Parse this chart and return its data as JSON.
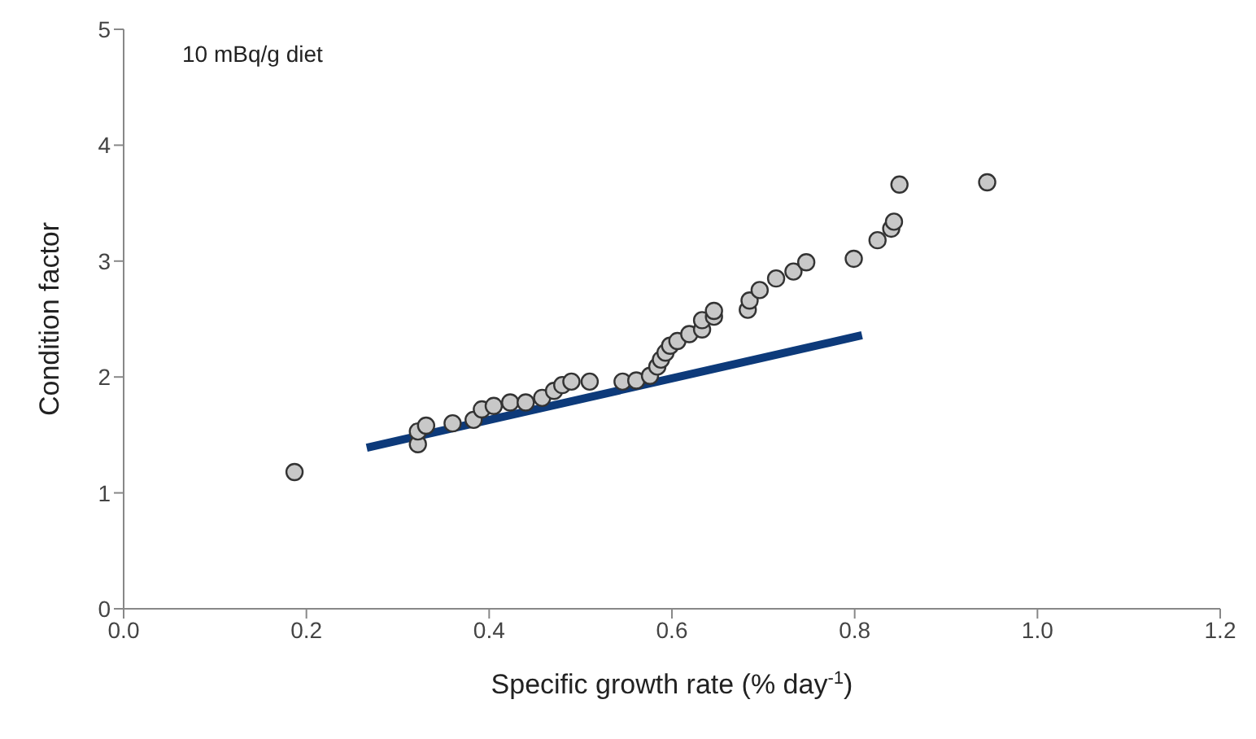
{
  "chart_data": {
    "type": "scatter",
    "xlabel": "Specific growth rate (% day$^{-1}$)",
    "ylabel": "Condition factor",
    "annotations": [
      "10 mBq/g diet"
    ],
    "xlim": [
      0,
      1.2
    ],
    "xticks": [
      {
        "value": 0,
        "label": "0.0"
      },
      0.2,
      0.4,
      0.6,
      0.8,
      {
        "value": 1,
        "label": "1.0"
      },
      {
        "value": 1.2,
        "label": "1.2"
      }
    ],
    "ylim": [
      0,
      5
    ],
    "yticks": [
      0,
      1,
      2,
      3,
      4,
      5
    ],
    "grid": false,
    "legend": false,
    "marker": "circle",
    "series": [
      {
        "color": "#c8c8c8",
        "x": [
          0.187,
          0.322,
          0.322,
          0.331,
          0.36,
          0.383,
          0.392,
          0.405,
          0.423,
          0.44,
          0.458,
          0.471,
          0.48,
          0.49,
          0.51,
          0.546,
          0.561,
          0.576,
          0.584,
          0.588,
          0.593,
          0.598,
          0.606,
          0.619,
          0.633,
          0.633,
          0.646,
          0.646,
          0.683,
          0.685,
          0.696,
          0.714,
          0.733,
          0.747,
          0.799,
          0.825,
          0.84,
          0.843,
          0.849,
          0.945
        ],
        "values": [
          1.18,
          1.42,
          1.53,
          1.58,
          1.6,
          1.63,
          1.72,
          1.75,
          1.78,
          1.78,
          1.82,
          1.88,
          1.93,
          1.96,
          1.96,
          1.96,
          1.97,
          2.01,
          2.09,
          2.15,
          2.21,
          2.27,
          2.31,
          2.37,
          2.41,
          2.49,
          2.52,
          2.57,
          2.58,
          2.66,
          2.75,
          2.85,
          2.91,
          2.99,
          3.02,
          3.18,
          3.28,
          3.34,
          3.66,
          3.68
        ]
      },
      {
        "type": "line",
        "color": "#0d3a7a",
        "x": [
          0.266,
          0.808
        ],
        "values": [
          1.39,
          2.36
        ],
        "marker": "none",
        "line_style": "solid"
      }
    ]
  }
}
